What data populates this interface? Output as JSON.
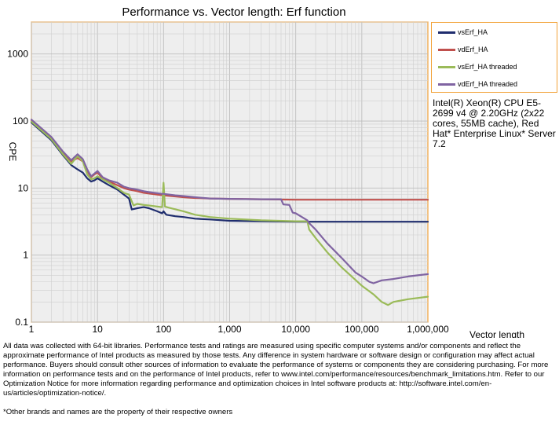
{
  "chart_data": {
    "type": "line",
    "title": "Performance vs. Vector length: Erf function",
    "xlabel": "Vector length",
    "ylabel": "CPE",
    "x_scale": "log",
    "y_scale": "log",
    "xlim": [
      1,
      1000000
    ],
    "ylim": [
      0.1,
      3000
    ],
    "grid": true,
    "legend_placement": "right",
    "x_ticks": [
      {
        "value": 1,
        "label": "1"
      },
      {
        "value": 10,
        "label": "10"
      },
      {
        "value": 100,
        "label": "100"
      },
      {
        "value": 1000,
        "label": "1,000"
      },
      {
        "value": 10000,
        "label": "10,000"
      },
      {
        "value": 100000,
        "label": "100,000"
      },
      {
        "value": 1000000,
        "label": "1,000,000"
      }
    ],
    "y_ticks": [
      {
        "value": 0.1,
        "label": "0.1"
      },
      {
        "value": 1,
        "label": "1"
      },
      {
        "value": 10,
        "label": "10"
      },
      {
        "value": 100,
        "label": "100"
      },
      {
        "value": 1000,
        "label": "1000"
      }
    ],
    "series": [
      {
        "name": "vsErf_HA",
        "color": "#1f2d6e",
        "points": [
          [
            1,
            95
          ],
          [
            2,
            52
          ],
          [
            3,
            31
          ],
          [
            4,
            22
          ],
          [
            5,
            19
          ],
          [
            6,
            17
          ],
          [
            7,
            14
          ],
          [
            8,
            12.5
          ],
          [
            9,
            13
          ],
          [
            10,
            14
          ],
          [
            12,
            12.5
          ],
          [
            15,
            11
          ],
          [
            20,
            9.5
          ],
          [
            25,
            8
          ],
          [
            30,
            7
          ],
          [
            33,
            4.8
          ],
          [
            40,
            5
          ],
          [
            50,
            5.2
          ],
          [
            60,
            5
          ],
          [
            80,
            4.5
          ],
          [
            95,
            4.2
          ],
          [
            100,
            4.5
          ],
          [
            110,
            4
          ],
          [
            150,
            3.8
          ],
          [
            200,
            3.7
          ],
          [
            300,
            3.5
          ],
          [
            500,
            3.4
          ],
          [
            1000,
            3.25
          ],
          [
            3000,
            3.2
          ],
          [
            10000,
            3.15
          ],
          [
            100000,
            3.15
          ],
          [
            1000000,
            3.15
          ]
        ]
      },
      {
        "name": "vdErf_HA",
        "color": "#c0504d",
        "points": [
          [
            1,
            100
          ],
          [
            2,
            55
          ],
          [
            3,
            34
          ],
          [
            4,
            25
          ],
          [
            5,
            28
          ],
          [
            6,
            25
          ],
          [
            7,
            18
          ],
          [
            8,
            14.5
          ],
          [
            9,
            16
          ],
          [
            10,
            17
          ],
          [
            12,
            14
          ],
          [
            15,
            12.5
          ],
          [
            20,
            11
          ],
          [
            25,
            10
          ],
          [
            30,
            9.5
          ],
          [
            40,
            9
          ],
          [
            50,
            8.5
          ],
          [
            60,
            8.3
          ],
          [
            80,
            8
          ],
          [
            100,
            7.8
          ],
          [
            150,
            7.5
          ],
          [
            200,
            7.3
          ],
          [
            300,
            7.1
          ],
          [
            500,
            7
          ],
          [
            1000,
            6.9
          ],
          [
            3000,
            6.8
          ],
          [
            10000,
            6.7
          ],
          [
            100000,
            6.7
          ],
          [
            1000000,
            6.7
          ]
        ]
      },
      {
        "name": "vsErf_HA threaded",
        "color": "#9bbb59",
        "points": [
          [
            1,
            98
          ],
          [
            2,
            54
          ],
          [
            3,
            32
          ],
          [
            4,
            23
          ],
          [
            5,
            30
          ],
          [
            6,
            25
          ],
          [
            7,
            16
          ],
          [
            8,
            13.5
          ],
          [
            9,
            14
          ],
          [
            10,
            15
          ],
          [
            12,
            13.5
          ],
          [
            15,
            12
          ],
          [
            20,
            10
          ],
          [
            25,
            8.5
          ],
          [
            30,
            8
          ],
          [
            35,
            5.5
          ],
          [
            40,
            5.8
          ],
          [
            50,
            5.6
          ],
          [
            60,
            5.5
          ],
          [
            80,
            5.3
          ],
          [
            95,
            5.2
          ],
          [
            100,
            12
          ],
          [
            105,
            5.3
          ],
          [
            120,
            5.1
          ],
          [
            200,
            4.5
          ],
          [
            300,
            4
          ],
          [
            500,
            3.7
          ],
          [
            1000,
            3.5
          ],
          [
            3000,
            3.3
          ],
          [
            10000,
            3.2
          ],
          [
            15000,
            3.2
          ],
          [
            16000,
            2.4
          ],
          [
            20000,
            1.8
          ],
          [
            30000,
            1.1
          ],
          [
            50000,
            0.65
          ],
          [
            100000,
            0.35
          ],
          [
            150000,
            0.26
          ],
          [
            200000,
            0.2
          ],
          [
            250000,
            0.18
          ],
          [
            300000,
            0.2
          ],
          [
            500000,
            0.22
          ],
          [
            1000000,
            0.24
          ]
        ]
      },
      {
        "name": "vdErf_HA threaded",
        "color": "#8064a2",
        "points": [
          [
            1,
            105
          ],
          [
            2,
            58
          ],
          [
            3,
            35
          ],
          [
            4,
            26
          ],
          [
            5,
            32
          ],
          [
            6,
            27
          ],
          [
            7,
            19
          ],
          [
            8,
            15
          ],
          [
            9,
            16.5
          ],
          [
            10,
            18
          ],
          [
            12,
            14.5
          ],
          [
            15,
            13
          ],
          [
            20,
            12
          ],
          [
            25,
            10.5
          ],
          [
            30,
            10
          ],
          [
            40,
            9.5
          ],
          [
            50,
            9
          ],
          [
            60,
            8.7
          ],
          [
            80,
            8.4
          ],
          [
            95,
            8.2
          ],
          [
            100,
            8.2
          ],
          [
            150,
            7.8
          ],
          [
            200,
            7.6
          ],
          [
            300,
            7.3
          ],
          [
            500,
            7
          ],
          [
            1000,
            6.9
          ],
          [
            3000,
            6.8
          ],
          [
            6000,
            6.8
          ],
          [
            6500,
            5.7
          ],
          [
            8000,
            5.6
          ],
          [
            9000,
            4.3
          ],
          [
            10000,
            4.2
          ],
          [
            15000,
            3.3
          ],
          [
            16000,
            3
          ],
          [
            20000,
            2.4
          ],
          [
            30000,
            1.5
          ],
          [
            50000,
            0.9
          ],
          [
            80000,
            0.55
          ],
          [
            100000,
            0.48
          ],
          [
            130000,
            0.4
          ],
          [
            150000,
            0.38
          ],
          [
            200000,
            0.42
          ],
          [
            300000,
            0.44
          ],
          [
            500000,
            0.48
          ],
          [
            700000,
            0.5
          ],
          [
            1000000,
            0.52
          ]
        ]
      }
    ]
  },
  "legend": {
    "items": [
      {
        "label": "vsErf_HA",
        "color": "#1f2d6e"
      },
      {
        "label": "vdErf_HA",
        "color": "#c0504d"
      },
      {
        "label": "vsErf_HA threaded",
        "color": "#9bbb59"
      },
      {
        "label": "vdErf_HA threaded",
        "color": "#8064a2"
      }
    ]
  },
  "system_info": "Intel(R) Xeon(R) CPU E5-2699 v4 @ 2.20GHz (2x22 cores, 55MB cache), Red Hat* Enterprise Linux* Server 7.2",
  "footer": {
    "disclaimer": "All data was collected with 64-bit libraries. Performance tests and ratings are measured using specific computer systems and/or components and reflect the approximate performance of Intel products as measured by those tests. Any difference in system hardware or software design or configuration may affect actual performance. Buyers should consult other sources of information to evaluate the performance of systems or components they are considering purchasing. For more information on performance tests and on the performance of Intel products, refer to www.intel.com/performance/resources/benchmark_limitations.htm. Refer to our Optimization Notice for more information regarding performance and optimization choices in Intel software products at: http://software.intel.com/en-us/articles/optimization-notice/.",
    "trademark": "*Other brands and names are the property of their respective owners"
  }
}
